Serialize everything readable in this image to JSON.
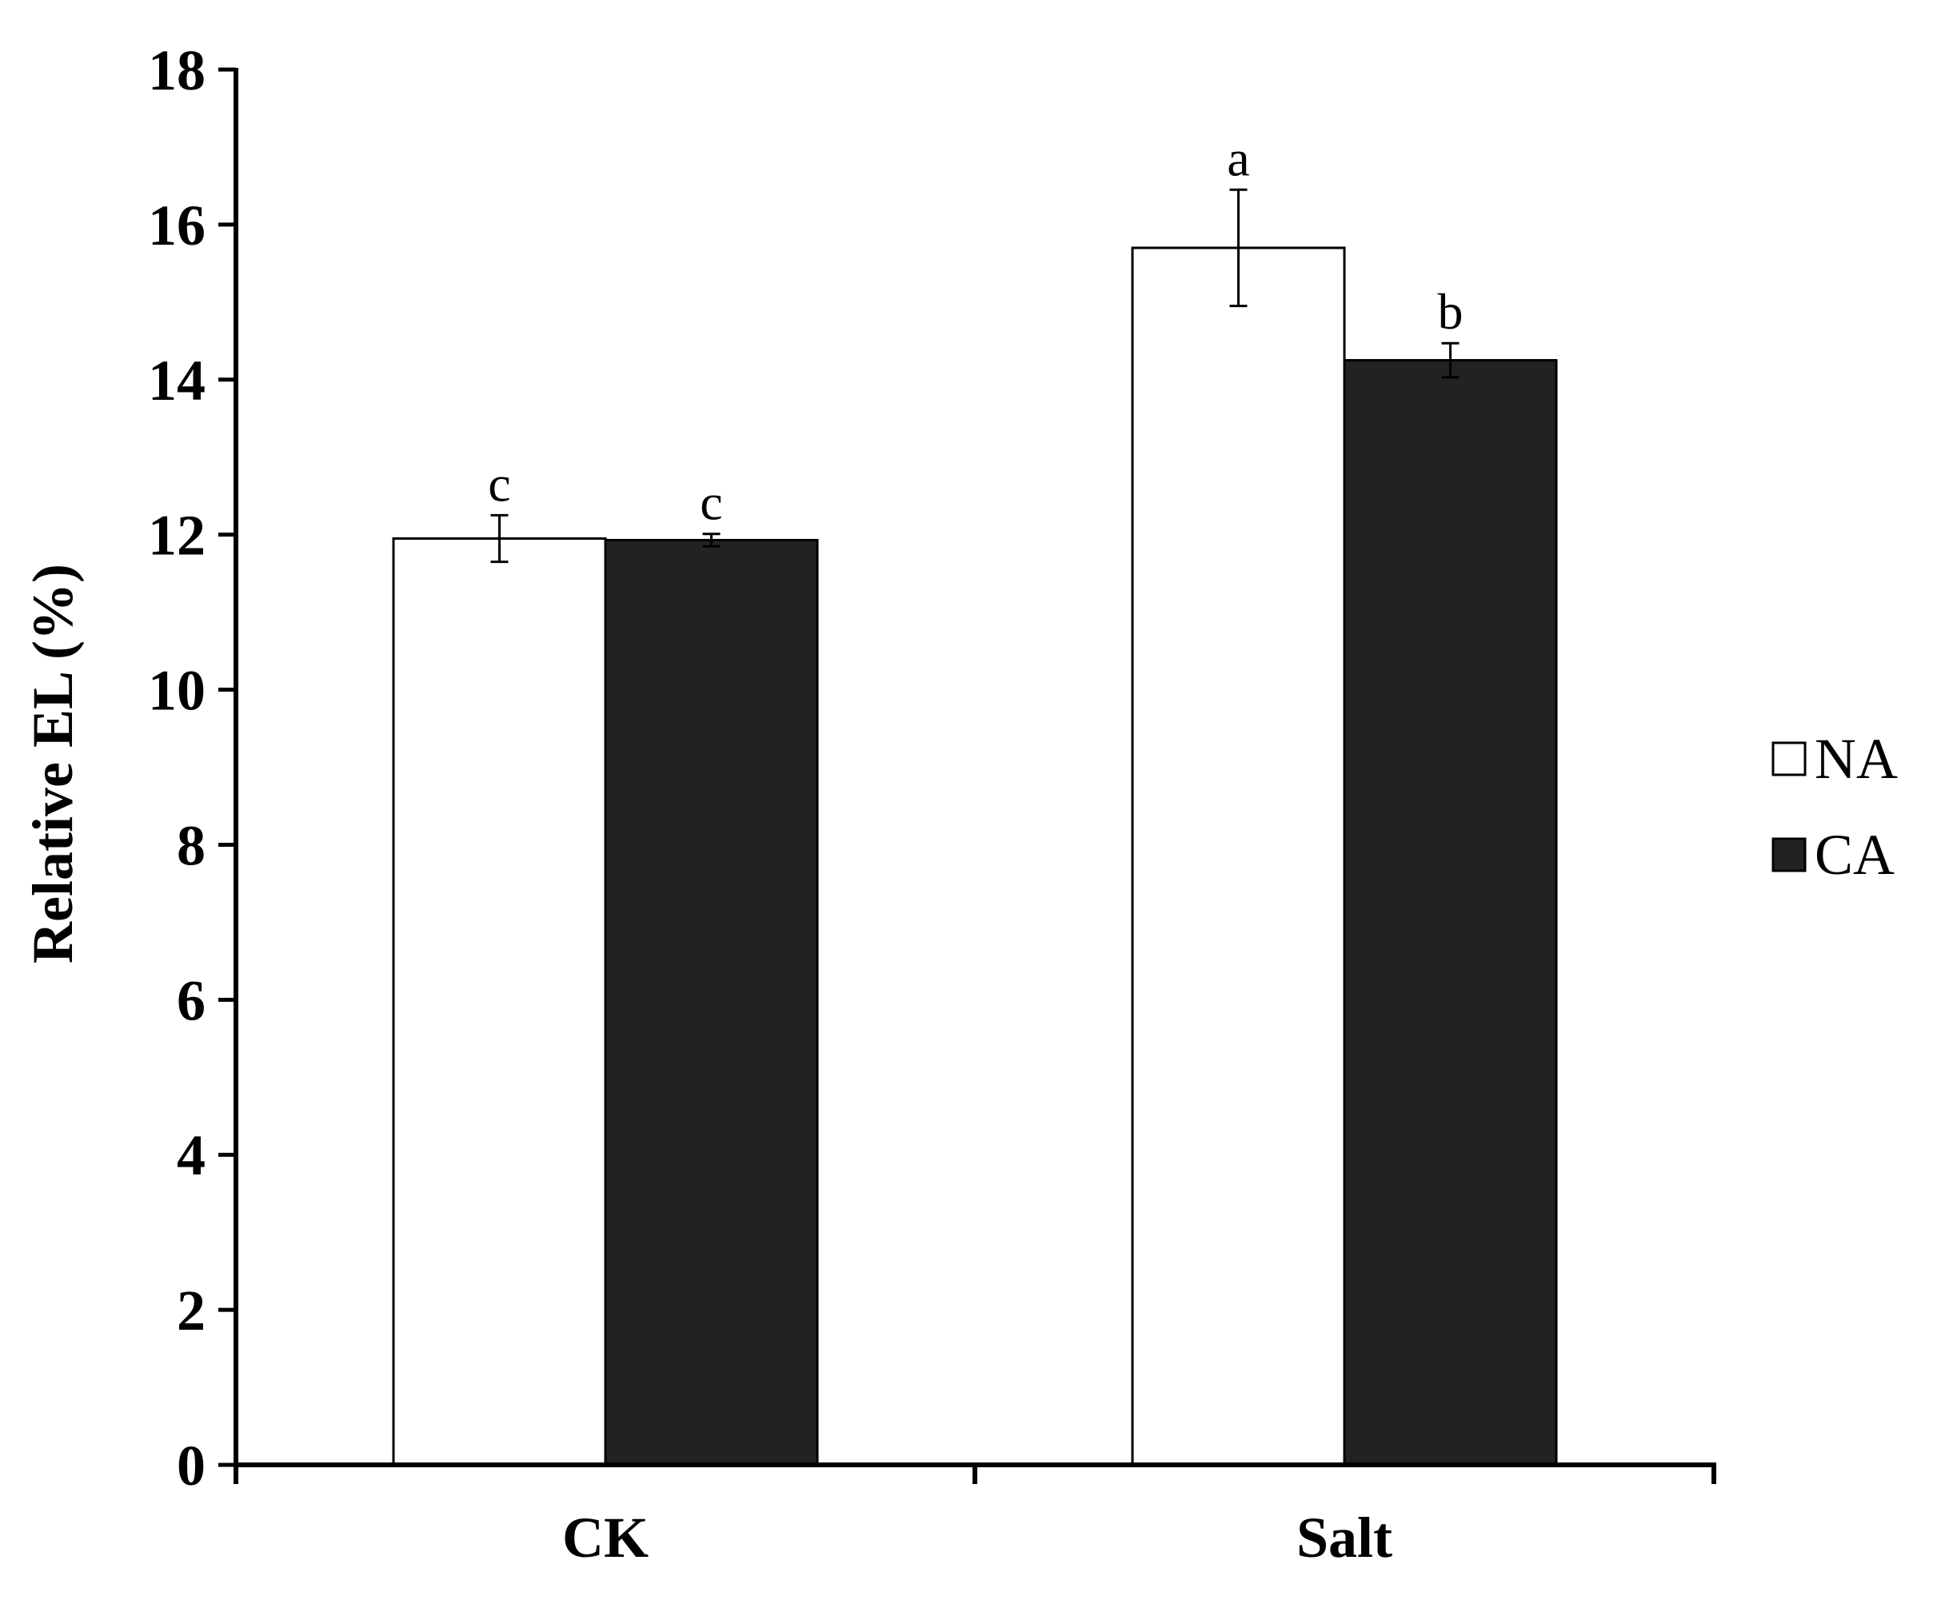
{
  "chart_data": {
    "type": "bar",
    "title": "",
    "xlabel": "",
    "ylabel": "Relative EL (%)",
    "ylim": [
      0,
      18
    ],
    "yticks": [
      "0",
      "2",
      "4",
      "6",
      "8",
      "10",
      "12",
      "14",
      "16",
      "18"
    ],
    "categories": [
      "CK",
      "Salt"
    ],
    "series": [
      {
        "name": "NA",
        "color": "#ffffff",
        "values": [
          11.95,
          15.7
        ],
        "errors": [
          0.3,
          0.75
        ],
        "labels": [
          "c",
          "a"
        ]
      },
      {
        "name": "CA",
        "color": "#222222",
        "values": [
          11.93,
          14.25
        ],
        "errors": [
          0.08,
          0.22
        ],
        "labels": [
          "c",
          "b"
        ]
      }
    ],
    "grid": false,
    "legend_position": "right"
  }
}
